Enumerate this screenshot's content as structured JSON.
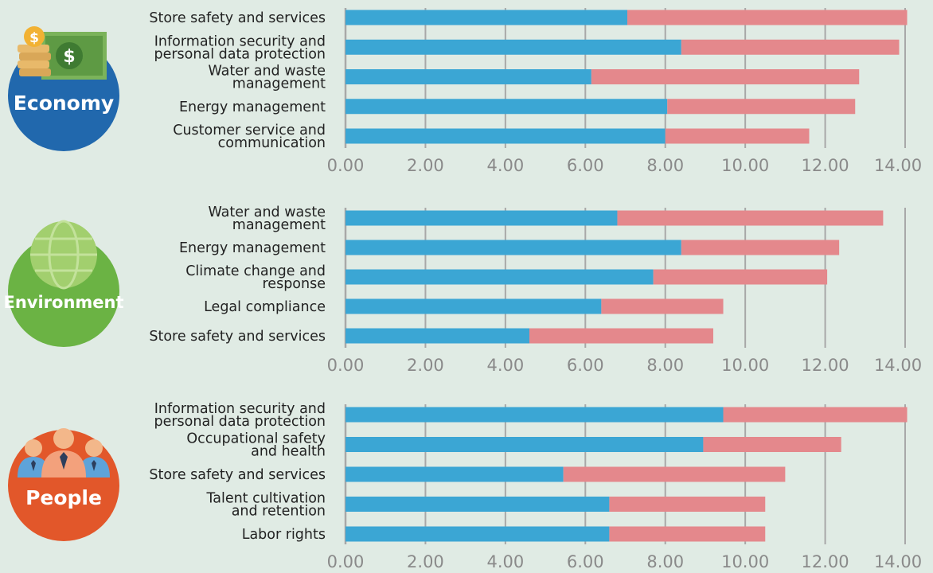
{
  "colors": {
    "background": "#e0ebe4",
    "series_primary": "#3ba6d4",
    "series_secondary": "#e4888c",
    "gridline": "#a8a8a8",
    "economy": "#2168ad",
    "environment": "#6bb344",
    "people": "#e2572a"
  },
  "panels": [
    {
      "label": "Economy",
      "icon": "money-icon"
    },
    {
      "label": "Environment",
      "icon": "globe-icon"
    },
    {
      "label": "People",
      "icon": "people-icon"
    }
  ],
  "chart_data": [
    {
      "type": "bar",
      "orientation": "horizontal",
      "stacked": true,
      "panel": "Economy",
      "categories": [
        [
          "Store safety and services"
        ],
        [
          "Information security and",
          "personal data protection"
        ],
        [
          "Water and waste",
          "management"
        ],
        [
          "Energy management"
        ],
        [
          "Customer service and",
          "communication"
        ]
      ],
      "series": [
        {
          "values": [
            7.05,
            8.4,
            6.15,
            8.05,
            8.0
          ]
        },
        {
          "values": [
            7.0,
            5.45,
            6.7,
            4.7,
            3.6
          ]
        }
      ],
      "xlim": [
        0,
        14
      ],
      "ticks": [
        "0.00",
        "2.00",
        "4.00",
        "6.00",
        "8.00",
        "10.00",
        "12.00",
        "14.00"
      ],
      "grid": true
    },
    {
      "type": "bar",
      "orientation": "horizontal",
      "stacked": true,
      "panel": "Environment",
      "categories": [
        [
          "Water and waste",
          "management"
        ],
        [
          "Energy management"
        ],
        [
          "Climate change and",
          "response"
        ],
        [
          "Legal compliance"
        ],
        [
          "Store safety and services"
        ]
      ],
      "series": [
        {
          "values": [
            6.8,
            8.4,
            7.7,
            6.4,
            4.6
          ]
        },
        {
          "values": [
            6.65,
            3.95,
            4.35,
            3.05,
            4.6
          ]
        }
      ],
      "xlim": [
        0,
        14
      ],
      "ticks": [
        "0.00",
        "2.00",
        "4.00",
        "6.00",
        "8.00",
        "10.00",
        "12.00",
        "14.00"
      ],
      "grid": true
    },
    {
      "type": "bar",
      "orientation": "horizontal",
      "stacked": true,
      "panel": "People",
      "categories": [
        [
          "Information security and",
          "personal data protection"
        ],
        [
          "Occupational safety",
          "and health"
        ],
        [
          "Store safety and services"
        ],
        [
          "Talent cultivation",
          "and retention"
        ],
        [
          "Labor rights"
        ]
      ],
      "series": [
        {
          "values": [
            9.45,
            8.95,
            5.45,
            6.6,
            6.6
          ]
        },
        {
          "values": [
            4.6,
            3.45,
            5.55,
            3.9,
            3.9
          ]
        }
      ],
      "xlim": [
        0,
        14
      ],
      "ticks": [
        "0.00",
        "2.00",
        "4.00",
        "6.00",
        "8.00",
        "10.00",
        "12.00",
        "14.00"
      ],
      "grid": true
    }
  ]
}
